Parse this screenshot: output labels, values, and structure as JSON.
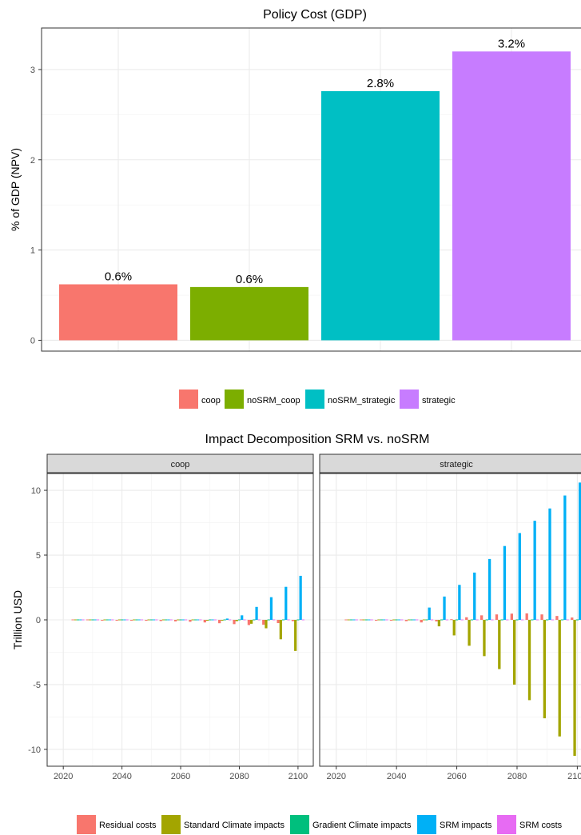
{
  "chart_data": [
    {
      "type": "bar",
      "title": "Policy Cost (GDP)",
      "ylabel": "% of GDP (NPV)",
      "xlabel": "",
      "categories": [
        "coop",
        "noSRM_coop",
        "noSRM_strategic",
        "strategic"
      ],
      "values": [
        0.62,
        0.59,
        2.76,
        3.2
      ],
      "data_labels": [
        "0.6%",
        "0.6%",
        "2.8%",
        "3.2%"
      ],
      "colors": [
        "#F8766D",
        "#7CAE00",
        "#00BFC4",
        "#C77CFF"
      ],
      "ylim": [
        -0.12,
        3.46
      ],
      "yticks": [
        0,
        1,
        2,
        3
      ],
      "ytick_labels": [
        "0",
        "1",
        "2",
        "3"
      ],
      "legend": {
        "position": "bottom",
        "entries": [
          "coop",
          "noSRM_coop",
          "noSRM_strategic",
          "strategic"
        ]
      },
      "grid": true
    },
    {
      "type": "bar",
      "title": "Impact Decomposition SRM vs. noSRM",
      "ylabel": "Trillion USD",
      "xlabel": "",
      "facets": [
        "coop",
        "strategic"
      ],
      "x": [
        2025,
        2030,
        2035,
        2040,
        2045,
        2050,
        2055,
        2060,
        2065,
        2070,
        2075,
        2080,
        2085,
        2090,
        2095,
        2100
      ],
      "xticks": [
        2020,
        2040,
        2060,
        2080,
        2100
      ],
      "xtick_labels": [
        "2020",
        "2040",
        "2060",
        "2080",
        "2100"
      ],
      "ylim": [
        -11.3,
        11.3
      ],
      "yticks": [
        -10,
        -5,
        0,
        5,
        10
      ],
      "ytick_labels": [
        "-10",
        "-5",
        "0",
        "5",
        "10"
      ],
      "legend": {
        "position": "bottom",
        "entries": [
          "Residual costs",
          "Standard Climate impacts",
          "Gradient Climate impacts",
          "SRM impacts",
          "SRM costs"
        ]
      },
      "series": [
        {
          "name": "Residual costs",
          "color": "#F8766D",
          "values": {
            "coop": [
              0,
              0,
              -0.02,
              -0.03,
              -0.05,
              -0.07,
              -0.09,
              -0.12,
              -0.15,
              -0.2,
              -0.26,
              -0.33,
              -0.4,
              -0.38,
              -0.25,
              -0.1
            ],
            "strategic": [
              0,
              0,
              -0.02,
              -0.04,
              -0.1,
              -0.2,
              -0.12,
              0.05,
              0.2,
              0.35,
              0.42,
              0.48,
              0.5,
              0.42,
              0.3,
              0.18
            ]
          }
        },
        {
          "name": "Standard Climate impacts",
          "color": "#A3A500",
          "values": {
            "coop": [
              0,
              0,
              0,
              0,
              0,
              0,
              0,
              0,
              0,
              -0.02,
              -0.05,
              -0.1,
              -0.3,
              -0.65,
              -1.5,
              -2.4
            ],
            "strategic": [
              0,
              0,
              0,
              0,
              0,
              0,
              -0.5,
              -1.2,
              -2.0,
              -2.8,
              -3.8,
              -5.0,
              -6.2,
              -7.6,
              -9.0,
              -10.5
            ]
          }
        },
        {
          "name": "Gradient Climate impacts",
          "color": "#00BF7D",
          "values": {
            "coop": [
              0,
              0,
              0,
              0,
              0,
              0,
              0,
              0,
              0,
              0,
              0,
              0,
              0,
              0,
              0,
              0
            ],
            "strategic": [
              0,
              0,
              0,
              0,
              0,
              0,
              0,
              0,
              0,
              0,
              0,
              0,
              0,
              0,
              0,
              0
            ]
          }
        },
        {
          "name": "SRM impacts",
          "color": "#00B0F6",
          "values": {
            "coop": [
              0,
              0,
              0,
              0,
              0,
              0,
              0,
              0,
              0,
              0,
              0.1,
              0.35,
              1.0,
              1.75,
              2.55,
              3.4
            ],
            "strategic": [
              0,
              0,
              0,
              0,
              0,
              0.95,
              1.8,
              2.7,
              3.65,
              4.7,
              5.7,
              6.7,
              7.65,
              8.6,
              9.6,
              10.6
            ]
          }
        },
        {
          "name": "SRM costs",
          "color": "#E76BF3",
          "values": {
            "coop": [
              0,
              0,
              0,
              0,
              0,
              0,
              0,
              0,
              0,
              0,
              0,
              0,
              0,
              0,
              0,
              0
            ],
            "strategic": [
              0,
              0,
              0,
              0,
              0,
              0,
              0,
              0,
              0,
              0,
              0,
              0,
              0,
              0,
              0,
              0
            ]
          }
        }
      ],
      "grid": true
    }
  ]
}
